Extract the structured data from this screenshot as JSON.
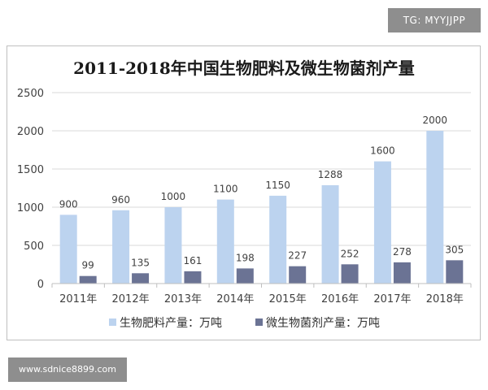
{
  "watermark_top": "TG: MYYJJPP",
  "watermark_bottom": "www.sdnice8899.com",
  "colors": {
    "series1": "#bcd3ef",
    "series2": "#6b7394",
    "grid": "#d9d9d9",
    "axis": "#bfbfbf"
  },
  "chart_data": {
    "type": "bar",
    "title": "2011-2018年中国生物肥料及微生物菌剂产量",
    "xlabel": "",
    "ylabel": "",
    "ylim": [
      0,
      2500
    ],
    "yticks": [
      "0",
      "500",
      "1000",
      "1500",
      "2000",
      "2500"
    ],
    "ytick_values": [
      0,
      500,
      1000,
      1500,
      2000,
      2500
    ],
    "grid": true,
    "legend_position": "bottom",
    "categories": [
      "2011年",
      "2012年",
      "2013年",
      "2014年",
      "2015年",
      "2016年",
      "2017年",
      "2018年"
    ],
    "series": [
      {
        "name": "生物肥料产量：万吨",
        "values": [
          900,
          960,
          1000,
          1100,
          1150,
          1288,
          1600,
          2000
        ],
        "labels": [
          "900",
          "960",
          "1000",
          "1100",
          "1150",
          "1288",
          "1600",
          "2000"
        ]
      },
      {
        "name": "微生物菌剂产量：万吨",
        "values": [
          99,
          135,
          161,
          198,
          227,
          252,
          278,
          305
        ],
        "labels": [
          "99",
          "135",
          "161",
          "198",
          "227",
          "252",
          "278",
          "305"
        ]
      }
    ]
  }
}
